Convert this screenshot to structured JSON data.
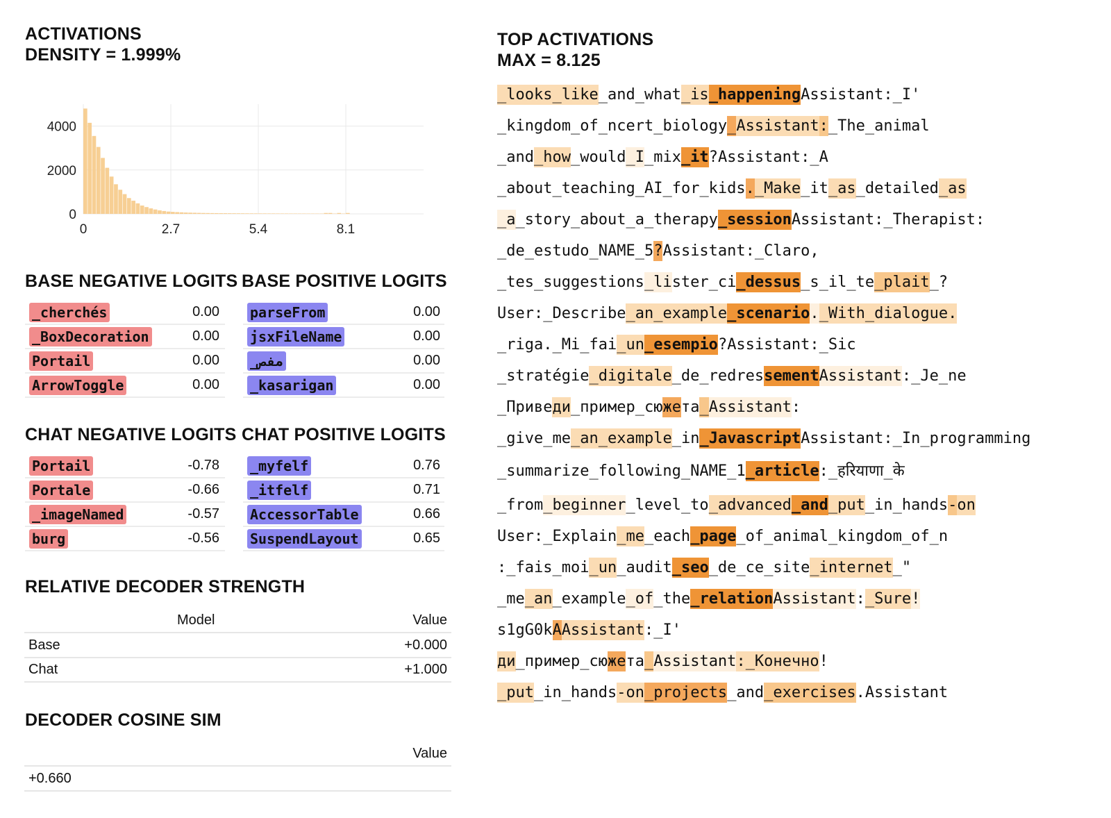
{
  "activations": {
    "title": "ACTIVATIONS",
    "density_label": "DENSITY = 1.999%",
    "bar_color": "#f7cf94",
    "chart_data": {
      "type": "bar",
      "title": "",
      "xlabel": "",
      "ylabel": "",
      "x_ticks": [
        "0",
        "2.7",
        "5.4",
        "8.1"
      ],
      "y_ticks": [
        "0",
        "2000",
        "4000"
      ],
      "xlim": [
        0,
        10.5
      ],
      "ylim": [
        0,
        5000
      ],
      "grid": true,
      "bin_width": 0.135,
      "bins_start": [
        0,
        0.135,
        0.27,
        0.405,
        0.54,
        0.675,
        0.81,
        0.945,
        1.08,
        1.215,
        1.35,
        1.485,
        1.62,
        1.755,
        1.89,
        2.025,
        2.16,
        2.295,
        2.43,
        2.565,
        2.7,
        2.835,
        2.97,
        3.105,
        3.24,
        3.375,
        3.51,
        3.645,
        3.78,
        3.915,
        4.05,
        4.185,
        4.32,
        4.455,
        4.59,
        4.725,
        4.86,
        4.995,
        5.13,
        5.265,
        5.4,
        5.535,
        5.67,
        5.805,
        5.94,
        6.075,
        6.21,
        6.345,
        6.48,
        6.615,
        6.75,
        6.885,
        7.02,
        7.155,
        7.29,
        7.425,
        7.56,
        7.695,
        7.83,
        7.965,
        8.1
      ],
      "counts": [
        4800,
        4150,
        3550,
        3050,
        2550,
        2100,
        1700,
        1350,
        1100,
        900,
        720,
        600,
        480,
        380,
        310,
        250,
        200,
        160,
        130,
        105,
        90,
        80,
        70,
        60,
        55,
        50,
        45,
        40,
        38,
        35,
        33,
        31,
        30,
        28,
        27,
        26,
        25,
        24,
        23,
        22,
        21,
        21,
        20,
        20,
        19,
        18,
        18,
        17,
        17,
        16,
        16,
        15,
        15,
        14,
        14,
        40,
        40,
        14,
        40,
        14,
        40
      ]
    }
  },
  "base_neg": {
    "title": "BASE NEGATIVE LOGITS",
    "rows": [
      {
        "token": "_cherchés",
        "value": "0.00"
      },
      {
        "token": "_BoxDecoration",
        "value": "0.00"
      },
      {
        "token": "Portail",
        "value": "0.00"
      },
      {
        "token": "ArrowToggle",
        "value": "0.00"
      }
    ]
  },
  "base_pos": {
    "title": "BASE POSITIVE LOGITS",
    "rows": [
      {
        "token": "parseFrom",
        "value": "0.00"
      },
      {
        "token": "jsxFileName",
        "value": "0.00"
      },
      {
        "token": "_مفص",
        "value": "0.00"
      },
      {
        "token": "_kasarigan",
        "value": "0.00"
      }
    ]
  },
  "chat_neg": {
    "title": "CHAT NEGATIVE LOGITS",
    "rows": [
      {
        "token": "Portail",
        "value": "-0.78"
      },
      {
        "token": "Portale",
        "value": "-0.66"
      },
      {
        "token": "_imageNamed",
        "value": "-0.57"
      },
      {
        "token": "burg",
        "value": "-0.56"
      }
    ]
  },
  "chat_pos": {
    "title": "CHAT POSITIVE LOGITS",
    "rows": [
      {
        "token": "_myfelf",
        "value": "0.76"
      },
      {
        "token": "_itfelf",
        "value": "0.71"
      },
      {
        "token": "AccessorTable",
        "value": "0.66"
      },
      {
        "token": "SuspendLayout",
        "value": "0.65"
      }
    ]
  },
  "rel_strength": {
    "title": "RELATIVE DECODER STRENGTH",
    "col_model": "Model",
    "col_value": "Value",
    "rows": [
      {
        "model": "Base",
        "value": "+0.000"
      },
      {
        "model": "Chat",
        "value": "+1.000"
      }
    ]
  },
  "cosine": {
    "title": "DECODER COSINE SIM",
    "col_value": "Value",
    "value": "+0.660"
  },
  "top": {
    "title": "TOP ACTIVATIONS",
    "max_label": "MAX = 8.125",
    "lines": [
      [
        [
          "_looks",
          2
        ],
        [
          "_like",
          2
        ],
        [
          "_and",
          0
        ],
        [
          "_what",
          0
        ],
        [
          "_is",
          2
        ],
        [
          "_happening",
          5
        ],
        [
          "Assistant",
          0
        ],
        [
          ":",
          0
        ],
        [
          "_I",
          0
        ],
        [
          "'",
          0
        ]
      ],
      [
        [
          "_kingdom",
          0
        ],
        [
          "_of",
          0
        ],
        [
          "_n",
          0
        ],
        [
          "cert",
          0
        ],
        [
          "_biology",
          0
        ],
        [
          "_",
          4
        ],
        [
          "Assistant",
          2
        ],
        [
          ":",
          3
        ],
        [
          "_The",
          0
        ],
        [
          "_animal",
          0
        ]
      ],
      [
        [
          "_and",
          0
        ],
        [
          "_how",
          2
        ],
        [
          "_would",
          0
        ],
        [
          "_I",
          1
        ],
        [
          "_mix",
          0
        ],
        [
          "_it",
          5
        ],
        [
          "?",
          0
        ],
        [
          "Assistant",
          0
        ],
        [
          ":",
          0
        ],
        [
          "_A",
          0
        ]
      ],
      [
        [
          "_about",
          0
        ],
        [
          "_teaching",
          0
        ],
        [
          "_AI",
          0
        ],
        [
          "_for",
          0
        ],
        [
          "_kids",
          0
        ],
        [
          ".",
          4
        ],
        [
          "_Make",
          2
        ],
        [
          "_it",
          0
        ],
        [
          "_as",
          2
        ],
        [
          "_detailed",
          0
        ],
        [
          "_as",
          2
        ]
      ],
      [
        [
          "_a",
          1
        ],
        [
          "_story",
          0
        ],
        [
          "_about",
          0
        ],
        [
          "_a",
          0
        ],
        [
          "_therapy",
          0
        ],
        [
          "_session",
          5
        ],
        [
          "Assistant",
          0
        ],
        [
          ":",
          0
        ],
        [
          "_Therapist",
          0
        ],
        [
          ":",
          0
        ]
      ],
      [
        [
          "_de",
          0
        ],
        [
          "_estudo",
          0
        ],
        [
          "_NAME",
          0
        ],
        [
          "_5",
          0
        ],
        [
          "?",
          4
        ],
        [
          "Assistant",
          0
        ],
        [
          ":",
          0
        ],
        [
          "_Claro",
          0
        ],
        [
          ",",
          0
        ]
      ],
      [
        [
          "_tes",
          0
        ],
        [
          "_suggestions",
          0
        ],
        [
          "_li",
          1
        ],
        [
          "ster",
          0
        ],
        [
          "_ci",
          0
        ],
        [
          "_dessus",
          5
        ],
        [
          "_s",
          0
        ],
        [
          "_il",
          0
        ],
        [
          "_te",
          0
        ],
        [
          "_plait",
          3
        ],
        [
          "_?",
          0
        ]
      ],
      [
        [
          "User",
          0
        ],
        [
          ":",
          0
        ],
        [
          "_Describe",
          0
        ],
        [
          "_an",
          2
        ],
        [
          "_example",
          2
        ],
        [
          "_scenario",
          5
        ],
        [
          ".",
          1
        ],
        [
          "_With",
          2
        ],
        [
          "_dialogue",
          2
        ],
        [
          ".",
          2
        ]
      ],
      [
        [
          "_riga",
          0
        ],
        [
          ".",
          0
        ],
        [
          "_Mi",
          0
        ],
        [
          "_fai",
          0
        ],
        [
          "_un",
          2
        ],
        [
          "_esempio",
          5
        ],
        [
          "?",
          0
        ],
        [
          "Assistant",
          0
        ],
        [
          ":",
          0
        ],
        [
          "_Sic",
          0
        ]
      ],
      [
        [
          "_stratégie",
          0
        ],
        [
          "_digitale",
          2
        ],
        [
          "_de",
          0
        ],
        [
          "_red",
          0
        ],
        [
          "res",
          0
        ],
        [
          "sement",
          5
        ],
        [
          "Assistant",
          1
        ],
        [
          ":",
          0
        ],
        [
          "_Je",
          0
        ],
        [
          "_ne",
          0
        ]
      ],
      [
        [
          "_При",
          0
        ],
        [
          "ве",
          0
        ],
        [
          "ди",
          2
        ],
        [
          "_пример",
          0
        ],
        [
          "_сю",
          0
        ],
        [
          "же",
          4
        ],
        [
          "та",
          0
        ],
        [
          "_",
          3
        ],
        [
          "Assistant",
          1
        ],
        [
          ":",
          0
        ]
      ],
      [
        [
          "_give",
          0
        ],
        [
          "_me",
          0
        ],
        [
          "_an",
          2
        ],
        [
          "_example",
          2
        ],
        [
          "_in",
          0
        ],
        [
          "_Javascript",
          5
        ],
        [
          "Assistant",
          0
        ],
        [
          ":",
          0
        ],
        [
          "_In",
          0
        ],
        [
          "_programming",
          0
        ]
      ],
      [
        [
          "_summarize",
          0
        ],
        [
          "_following",
          0
        ],
        [
          "_NAME",
          0
        ],
        [
          "_1",
          0
        ],
        [
          "_article",
          5
        ],
        [
          ":",
          0
        ],
        [
          "_हरियाणा",
          0
        ],
        [
          "_के",
          0
        ]
      ],
      [
        [
          "_from",
          0
        ],
        [
          "_beginner",
          1
        ],
        [
          "_level",
          0
        ],
        [
          "_to",
          0
        ],
        [
          "_advanced",
          2
        ],
        [
          "_and",
          5
        ],
        [
          "_put",
          2
        ],
        [
          "_in",
          0
        ],
        [
          "_hands",
          0
        ],
        [
          "-",
          3
        ],
        [
          "on",
          2
        ]
      ],
      [
        [
          "User",
          0
        ],
        [
          ":",
          0
        ],
        [
          "_Explain",
          0
        ],
        [
          "_me",
          2
        ],
        [
          "_each",
          0
        ],
        [
          "_page",
          5
        ],
        [
          "_of",
          0
        ],
        [
          "_animal",
          0
        ],
        [
          "_kingdom",
          0
        ],
        [
          "_of",
          0
        ],
        [
          "_n",
          0
        ]
      ],
      [
        [
          ":",
          0
        ],
        [
          "_fais",
          0
        ],
        [
          "_moi",
          0
        ],
        [
          "_un",
          2
        ],
        [
          "_audit",
          0
        ],
        [
          "_seo",
          5
        ],
        [
          "_de",
          0
        ],
        [
          "_ce",
          0
        ],
        [
          "_site",
          0
        ],
        [
          "_internet",
          2
        ],
        [
          "_\"",
          0
        ]
      ],
      [
        [
          "_me",
          0
        ],
        [
          "_an",
          2
        ],
        [
          "_example",
          0
        ],
        [
          "_of",
          1
        ],
        [
          "_the",
          0
        ],
        [
          "_relation",
          5
        ],
        [
          "Assistant",
          1
        ],
        [
          ":",
          0
        ],
        [
          "_Sure",
          2
        ],
        [
          "!",
          1
        ]
      ],
      [
        [
          "s",
          0
        ],
        [
          "1",
          0
        ],
        [
          "g",
          0
        ],
        [
          "G",
          0
        ],
        [
          "0",
          0
        ],
        [
          "k",
          0
        ],
        [
          "A",
          4
        ],
        [
          "Assistant",
          2
        ],
        [
          ":",
          0
        ],
        [
          "_I",
          0
        ],
        [
          "'",
          0
        ]
      ],
      [
        [
          "ди",
          2
        ],
        [
          "_пример",
          0
        ],
        [
          "_сю",
          0
        ],
        [
          "же",
          4
        ],
        [
          "та",
          0
        ],
        [
          "_",
          3
        ],
        [
          "Assistant",
          1
        ],
        [
          ":",
          2
        ],
        [
          "_Конечно",
          2
        ],
        [
          "!",
          0
        ]
      ],
      [
        [
          "_put",
          2
        ],
        [
          "_in",
          0
        ],
        [
          "_hands",
          0
        ],
        [
          "-",
          2
        ],
        [
          "on",
          2
        ],
        [
          "_projects",
          4
        ],
        [
          "_and",
          0
        ],
        [
          "_exercises",
          3
        ],
        [
          ".",
          0
        ],
        [
          "Assistant",
          0
        ]
      ]
    ]
  }
}
